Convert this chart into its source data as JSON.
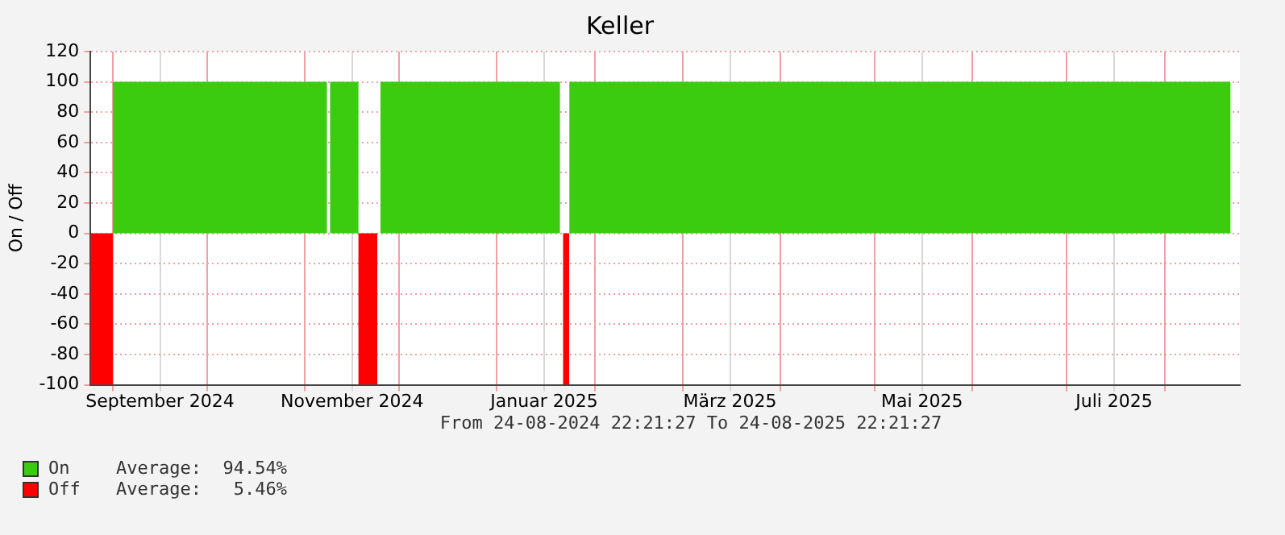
{
  "chart_data": {
    "type": "area",
    "title": "Keller",
    "ylabel": "On / Off",
    "xlim": [
      "2024-08-24T22:21",
      "2025-08-24T22:21"
    ],
    "xticks": [
      {
        "value": "2024-09-01",
        "label": null
      },
      {
        "value": "2024-09-16",
        "label": "September 2024"
      },
      {
        "value": "2024-10-01",
        "label": null
      },
      {
        "value": "2024-11-01",
        "label": null
      },
      {
        "value": "2024-11-16",
        "label": "November 2024"
      },
      {
        "value": "2024-12-01",
        "label": null
      },
      {
        "value": "2025-01-01",
        "label": null
      },
      {
        "value": "2025-01-16",
        "label": "Januar 2025"
      },
      {
        "value": "2025-02-01",
        "label": null
      },
      {
        "value": "2025-03-01",
        "label": null
      },
      {
        "value": "2025-03-16",
        "label": "März 2025"
      },
      {
        "value": "2025-04-01",
        "label": null
      },
      {
        "value": "2025-05-01",
        "label": null
      },
      {
        "value": "2025-05-16",
        "label": "Mai 2025"
      },
      {
        "value": "2025-06-01",
        "label": null
      },
      {
        "value": "2025-07-01",
        "label": null
      },
      {
        "value": "2025-07-16",
        "label": "Juli 2025"
      },
      {
        "value": "2025-08-01",
        "label": null
      }
    ],
    "ylim": [
      -100,
      120
    ],
    "yticks": [
      -100,
      -80,
      -60,
      -40,
      -20,
      0,
      20,
      40,
      60,
      80,
      100,
      120
    ],
    "grid": true,
    "legend": "bottom left",
    "series": [
      {
        "name": "On",
        "color": "#3bcc10",
        "x": [
          "2024-09-01",
          "2024-11-08",
          "2024-11-08",
          "2024-11-09",
          "2024-11-09",
          "2024-11-18",
          "2024-11-18",
          "2024-11-25",
          "2024-11-25",
          "2025-01-21",
          "2025-01-21",
          "2025-01-24",
          "2025-01-24",
          "2025-08-22"
        ],
        "values": [
          100,
          100,
          0,
          0,
          100,
          100,
          0,
          0,
          100,
          100,
          0,
          0,
          100,
          100
        ]
      },
      {
        "name": "Off",
        "color": "#ff0000",
        "x": [
          "2024-08-24T22:21",
          "2024-09-01",
          "2024-09-01",
          "2024-11-18",
          "2024-11-18",
          "2024-11-24",
          "2024-11-24",
          "2025-01-22",
          "2025-01-22",
          "2025-01-24"
        ],
        "values": [
          -100,
          -100,
          0,
          0,
          -100,
          -100,
          0,
          0,
          -100,
          -100
        ]
      }
    ],
    "annotations": [
      "From 24-08-2024 22:21:27 To 24-08-2025 22:21:27",
      "Average:  94.54%",
      "Average:   5.46%"
    ]
  }
}
